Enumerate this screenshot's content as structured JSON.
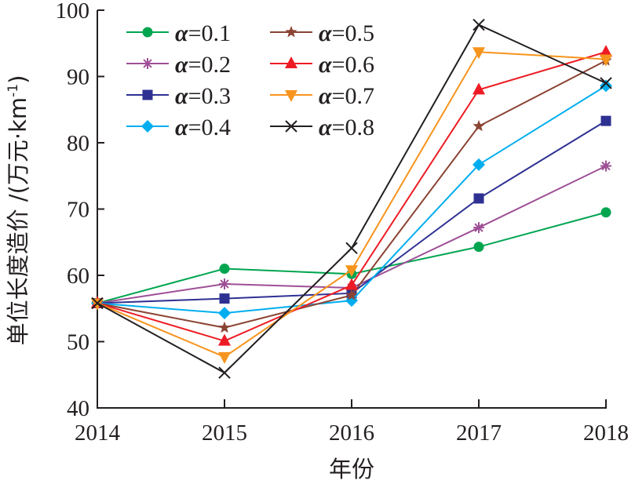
{
  "chart_data": {
    "type": "line",
    "title": "",
    "xlabel": "年份",
    "ylabel": "单位长度造价 /(万元·km⁻¹)",
    "ylabel_parts": {
      "main": "单位长度造价 /(万元·km",
      "superscript": "-1",
      "close": ")"
    },
    "x": [
      "2014",
      "2015",
      "2016",
      "2017",
      "2018"
    ],
    "ylim": [
      40,
      100
    ],
    "yticks": [
      40,
      50,
      60,
      70,
      80,
      90,
      100
    ],
    "grid": false,
    "legend_position": "top-left",
    "legend_columns": 2,
    "series": [
      {
        "name": "α=0.1",
        "alpha_symbol": "α",
        "label_value": "=0.1",
        "color": "#00a550",
        "marker": "circle",
        "values": [
          55.8,
          61.0,
          60.2,
          64.3,
          69.5
        ]
      },
      {
        "name": "α=0.2",
        "alpha_symbol": "α",
        "label_value": "=0.2",
        "color": "#9e4f96",
        "marker": "asterisk",
        "values": [
          55.8,
          58.7,
          58.1,
          67.2,
          76.5
        ]
      },
      {
        "name": "α=0.3",
        "alpha_symbol": "α",
        "label_value": "=0.3",
        "color": "#2e3192",
        "marker": "square",
        "values": [
          55.8,
          56.5,
          57.3,
          71.6,
          83.3
        ]
      },
      {
        "name": "α=0.4",
        "alpha_symbol": "α",
        "label_value": "=0.4",
        "color": "#00aeef",
        "marker": "diamond",
        "values": [
          55.8,
          54.3,
          56.2,
          76.7,
          88.6
        ]
      },
      {
        "name": "α=0.5",
        "alpha_symbol": "α",
        "label_value": "=0.5",
        "color": "#8b4434",
        "marker": "star",
        "values": [
          55.8,
          52.1,
          57.0,
          82.5,
          92.4
        ]
      },
      {
        "name": "α=0.6",
        "alpha_symbol": "α",
        "label_value": "=0.6",
        "color": "#ed1c24",
        "marker": "triangle-up",
        "values": [
          55.8,
          50.1,
          58.5,
          88.0,
          93.7
        ]
      },
      {
        "name": "α=0.7",
        "alpha_symbol": "α",
        "label_value": "=0.7",
        "color": "#f7941d",
        "marker": "triangle-down",
        "values": [
          55.8,
          47.7,
          60.8,
          93.7,
          92.6
        ]
      },
      {
        "name": "α=0.8",
        "alpha_symbol": "α",
        "label_value": "=0.8",
        "color": "#231f20",
        "marker": "x",
        "values": [
          55.8,
          45.3,
          64.1,
          97.8,
          89.0
        ]
      }
    ]
  }
}
